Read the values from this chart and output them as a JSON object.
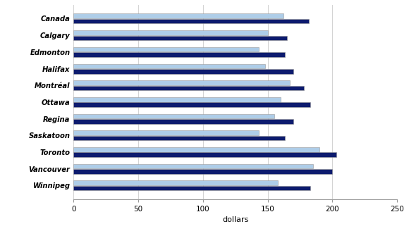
{
  "categories": [
    "Canada",
    "Calgary",
    "Edmonton",
    "Halifax",
    "Montréal",
    "Ottawa",
    "Regina",
    "Saskatoon",
    "Toronto",
    "Vancouver",
    "Winnipeg"
  ],
  "q2_2018": [
    162,
    150,
    143,
    148,
    167,
    160,
    155,
    143,
    190,
    185,
    158
  ],
  "q2_2019": [
    182,
    165,
    163,
    170,
    178,
    183,
    170,
    163,
    203,
    200,
    183
  ],
  "color_2018": "#aecde8",
  "color_2019": "#0d1b6e",
  "xlabel": "dollars",
  "xlim": [
    0,
    250
  ],
  "xticks": [
    0,
    50,
    100,
    150,
    200,
    250
  ],
  "bar_height": 0.28,
  "bar_gap": 0.03,
  "background_color": "#ffffff",
  "edge_color": "#999999",
  "grid_color": "#cccccc"
}
